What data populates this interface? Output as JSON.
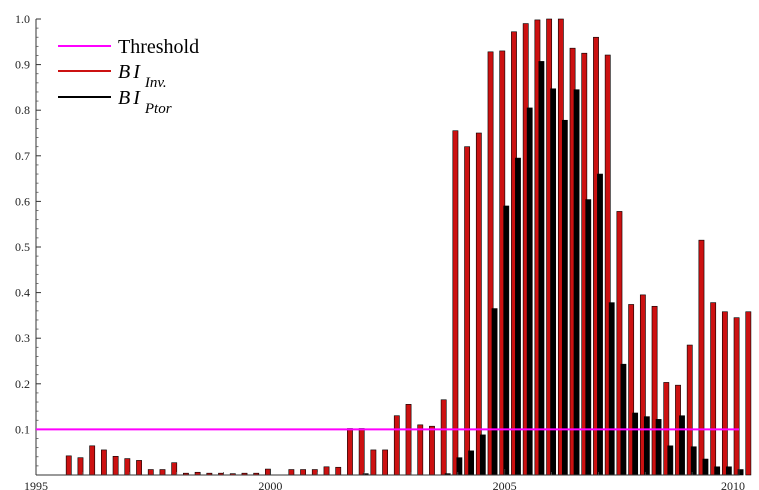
{
  "chart_data": {
    "type": "bar",
    "xlabel": "",
    "ylabel": "",
    "xlim": [
      1995,
      2010
    ],
    "ylim": [
      0,
      1.0
    ],
    "x_ticks": [
      "1995",
      "2000",
      "2005",
      "2010"
    ],
    "y_ticks": [
      "0.1",
      "0.2",
      "0.3",
      "0.4",
      "0.5",
      "0.6",
      "0.7",
      "0.8",
      "0.9",
      "1.0"
    ],
    "grid": false,
    "legend_position": "top-left",
    "threshold": {
      "name": "Threshold",
      "value": 0.1,
      "color": "#ff00ff"
    },
    "series": [
      {
        "name_base": "BI",
        "name_sub": "Inv.",
        "color": "#cc1111",
        "points": [
          {
            "x": 1995.75,
            "y": 0.042
          },
          {
            "x": 1996.0,
            "y": 0.038
          },
          {
            "x": 1996.25,
            "y": 0.064
          },
          {
            "x": 1996.5,
            "y": 0.055
          },
          {
            "x": 1996.75,
            "y": 0.041
          },
          {
            "x": 1997.0,
            "y": 0.036
          },
          {
            "x": 1997.25,
            "y": 0.032
          },
          {
            "x": 1997.5,
            "y": 0.012
          },
          {
            "x": 1997.75,
            "y": 0.012
          },
          {
            "x": 1998.0,
            "y": 0.027
          },
          {
            "x": 1998.25,
            "y": 0.004
          },
          {
            "x": 1998.5,
            "y": 0.006
          },
          {
            "x": 1998.75,
            "y": 0.004
          },
          {
            "x": 1999.0,
            "y": 0.004
          },
          {
            "x": 1999.25,
            "y": 0.003
          },
          {
            "x": 1999.5,
            "y": 0.004
          },
          {
            "x": 1999.75,
            "y": 0.004
          },
          {
            "x": 2000.0,
            "y": 0.013
          },
          {
            "x": 2000.5,
            "y": 0.012
          },
          {
            "x": 2000.75,
            "y": 0.012
          },
          {
            "x": 2001.0,
            "y": 0.012
          },
          {
            "x": 2001.25,
            "y": 0.018
          },
          {
            "x": 2001.5,
            "y": 0.017
          },
          {
            "x": 2001.75,
            "y": 0.102
          },
          {
            "x": 2002.0,
            "y": 0.102
          },
          {
            "x": 2002.25,
            "y": 0.055
          },
          {
            "x": 2002.5,
            "y": 0.055
          },
          {
            "x": 2002.75,
            "y": 0.13
          },
          {
            "x": 2003.0,
            "y": 0.155
          },
          {
            "x": 2003.25,
            "y": 0.11
          },
          {
            "x": 2003.5,
            "y": 0.107
          },
          {
            "x": 2003.75,
            "y": 0.165
          },
          {
            "x": 2004.0,
            "y": 0.755
          },
          {
            "x": 2004.25,
            "y": 0.72
          },
          {
            "x": 2004.5,
            "y": 0.75
          },
          {
            "x": 2004.75,
            "y": 0.928
          },
          {
            "x": 2005.0,
            "y": 0.93
          },
          {
            "x": 2005.25,
            "y": 0.972
          },
          {
            "x": 2005.5,
            "y": 0.99
          },
          {
            "x": 2005.75,
            "y": 0.998
          },
          {
            "x": 2006.0,
            "y": 1.0
          },
          {
            "x": 2006.25,
            "y": 1.0
          },
          {
            "x": 2006.5,
            "y": 0.936
          },
          {
            "x": 2006.75,
            "y": 0.925
          },
          {
            "x": 2007.0,
            "y": 0.96
          },
          {
            "x": 2007.25,
            "y": 0.921
          },
          {
            "x": 2007.5,
            "y": 0.578
          },
          {
            "x": 2007.75,
            "y": 0.374
          },
          {
            "x": 2008.0,
            "y": 0.395
          },
          {
            "x": 2008.25,
            "y": 0.37
          },
          {
            "x": 2008.5,
            "y": 0.203
          },
          {
            "x": 2008.75,
            "y": 0.197
          },
          {
            "x": 2009.0,
            "y": 0.285
          },
          {
            "x": 2009.25,
            "y": 0.515
          },
          {
            "x": 2009.5,
            "y": 0.378
          },
          {
            "x": 2009.75,
            "y": 0.358
          },
          {
            "x": 2010.0,
            "y": 0.345
          },
          {
            "x": 2010.25,
            "y": 0.358
          }
        ]
      },
      {
        "name_base": "BI",
        "name_sub": "Ptor",
        "color": "#000000",
        "points": [
          {
            "x": 2002.0,
            "y": 0.003
          },
          {
            "x": 2003.75,
            "y": 0.003
          },
          {
            "x": 2004.0,
            "y": 0.038
          },
          {
            "x": 2004.25,
            "y": 0.053
          },
          {
            "x": 2004.5,
            "y": 0.088
          },
          {
            "x": 2004.75,
            "y": 0.365
          },
          {
            "x": 2005.0,
            "y": 0.59
          },
          {
            "x": 2005.25,
            "y": 0.695
          },
          {
            "x": 2005.5,
            "y": 0.805
          },
          {
            "x": 2005.75,
            "y": 0.907
          },
          {
            "x": 2006.0,
            "y": 0.847
          },
          {
            "x": 2006.25,
            "y": 0.778
          },
          {
            "x": 2006.5,
            "y": 0.845
          },
          {
            "x": 2006.75,
            "y": 0.604
          },
          {
            "x": 2007.0,
            "y": 0.66
          },
          {
            "x": 2007.25,
            "y": 0.378
          },
          {
            "x": 2007.5,
            "y": 0.243
          },
          {
            "x": 2007.75,
            "y": 0.136
          },
          {
            "x": 2008.0,
            "y": 0.128
          },
          {
            "x": 2008.25,
            "y": 0.122
          },
          {
            "x": 2008.5,
            "y": 0.064
          },
          {
            "x": 2008.75,
            "y": 0.13
          },
          {
            "x": 2009.0,
            "y": 0.062
          },
          {
            "x": 2009.25,
            "y": 0.035
          },
          {
            "x": 2009.5,
            "y": 0.018
          },
          {
            "x": 2009.75,
            "y": 0.018
          },
          {
            "x": 2010.0,
            "y": 0.012
          }
        ]
      }
    ]
  }
}
